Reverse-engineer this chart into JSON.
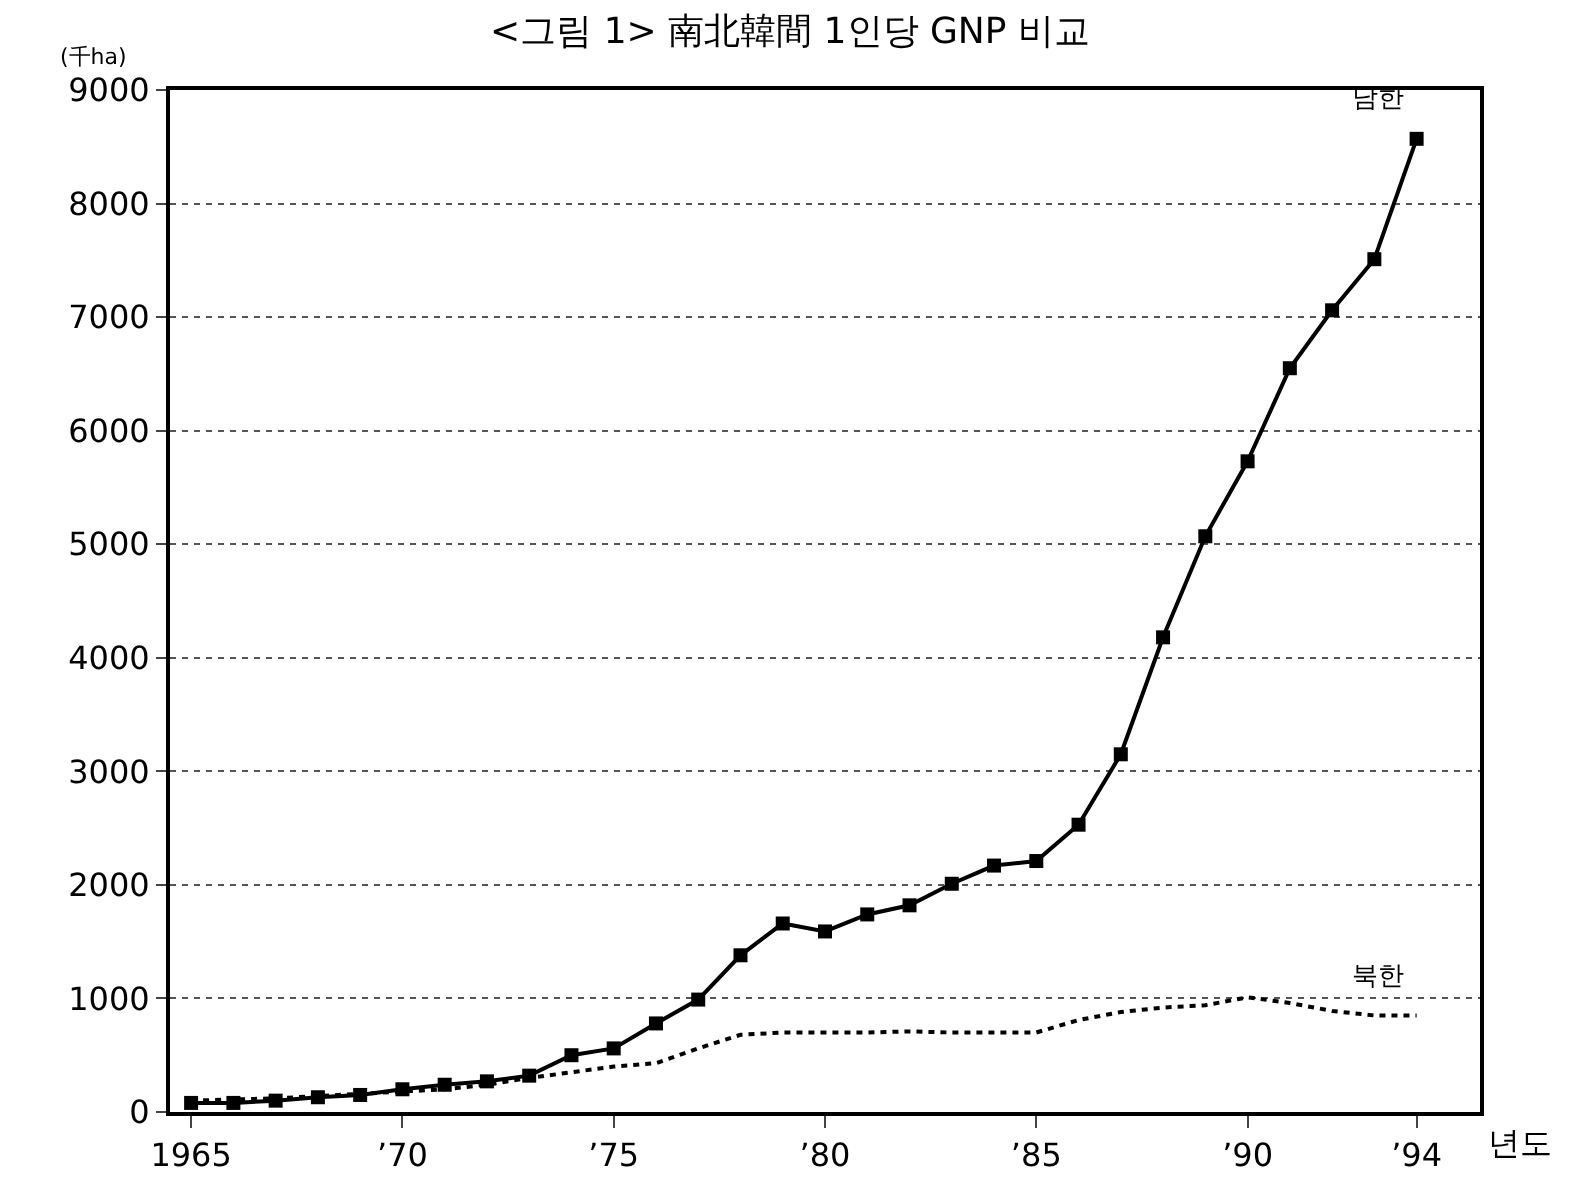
{
  "chart_data": {
    "type": "line",
    "title": "<그림 1> 南北韓間 1인당 GNP 비교",
    "ylabel": "(千ha)",
    "xlabel": "년도",
    "x": [
      1965,
      1966,
      1967,
      1968,
      1969,
      1970,
      1971,
      1972,
      1973,
      1974,
      1975,
      1976,
      1977,
      1978,
      1979,
      1980,
      1981,
      1982,
      1983,
      1984,
      1985,
      1986,
      1987,
      1988,
      1989,
      1990,
      1991,
      1992,
      1993,
      1994
    ],
    "series": [
      {
        "name": "남한",
        "color": "#000000",
        "marker": "square",
        "line_style": "solid",
        "values": [
          80,
          80,
          100,
          130,
          150,
          200,
          240,
          270,
          320,
          500,
          560,
          780,
          990,
          1380,
          1660,
          1590,
          1740,
          1820,
          2010,
          2170,
          2210,
          2530,
          3150,
          4180,
          5070,
          5730,
          6550,
          7060,
          7510,
          8570
        ]
      },
      {
        "name": "북한",
        "color": "#000000",
        "marker": "none",
        "line_style": "dotted",
        "values": [
          100,
          110,
          120,
          140,
          160,
          180,
          200,
          240,
          300,
          350,
          400,
          430,
          560,
          680,
          700,
          700,
          700,
          710,
          700,
          700,
          700,
          810,
          880,
          920,
          940,
          1010,
          960,
          890,
          850,
          850
        ]
      }
    ],
    "xlim": [
      1964.5,
      1995.5
    ],
    "xticks": [
      1965,
      {
        "value": 1970,
        "label": "’70"
      },
      {
        "value": 1975,
        "label": "’75"
      },
      {
        "value": 1980,
        "label": "’80"
      },
      {
        "value": 1985,
        "label": "’85"
      },
      {
        "value": 1990,
        "label": "’90"
      },
      {
        "value": 1994,
        "label": "’94"
      }
    ],
    "ylim": [
      0,
      9000
    ],
    "yticks": [
      0,
      1000,
      2000,
      3000,
      4000,
      5000,
      6000,
      7000,
      8000,
      9000
    ],
    "grid": "y",
    "legend": false
  }
}
